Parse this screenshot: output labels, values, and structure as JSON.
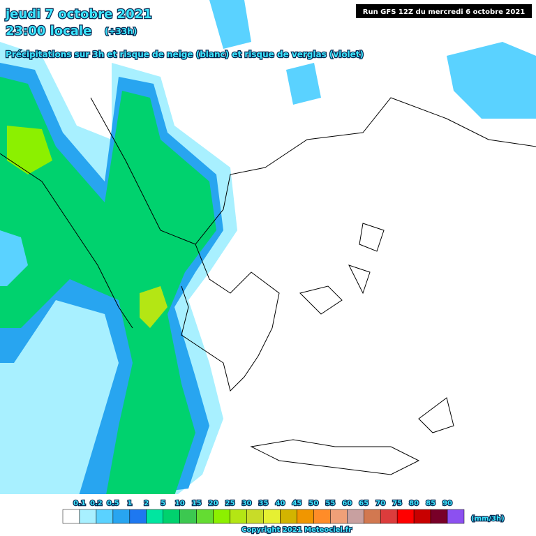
{
  "header": {
    "date": "jeudi 7 octobre 2021",
    "time": "23:00 locale",
    "lead": "(+33h)",
    "subtitle": "Précipitations sur 3h et risque de neige (blanc) et risque de verglas (violet)",
    "run": "Run GFS 12Z du mercredi 6 octobre 2021"
  },
  "legend": {
    "labels": [
      "0.1",
      "0.2",
      "0.5",
      "1",
      "2",
      "5",
      "10",
      "15",
      "20",
      "25",
      "30",
      "35",
      "40",
      "45",
      "50",
      "55",
      "60",
      "65",
      "70",
      "75",
      "80",
      "85",
      "90"
    ],
    "colors": [
      "#ffffff",
      "#a8f0ff",
      "#5ad2ff",
      "#28a5f0",
      "#1e78f0",
      "#00e6a0",
      "#00d26e",
      "#3cc850",
      "#64dc32",
      "#8cf000",
      "#b4e614",
      "#c8dc28",
      "#e6f032",
      "#d2b400",
      "#f09600",
      "#ff8c28",
      "#f0a078",
      "#c8a0a0",
      "#d27850",
      "#dc3c3c",
      "#ff0000",
      "#c80000",
      "#780028",
      "#8c50f0"
    ],
    "unit": "(mm/3h)"
  },
  "footer": {
    "copyright": "Copyright 2021 Meteociel.fr"
  }
}
